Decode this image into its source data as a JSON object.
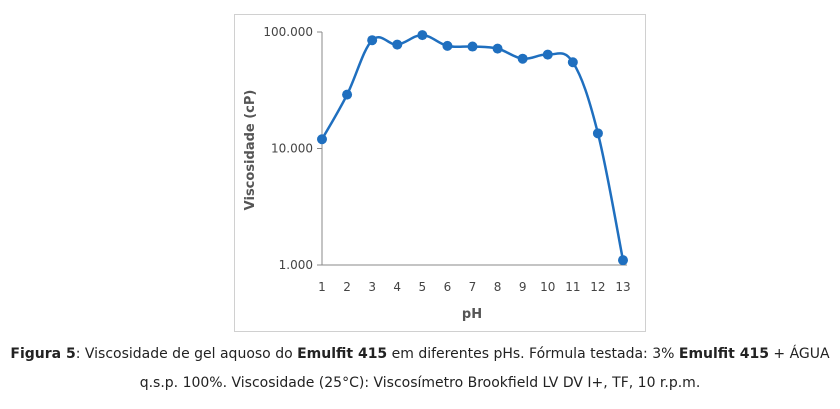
{
  "chart_data": {
    "type": "line",
    "xlabel": "pH",
    "ylabel": "Viscosidade (cP)",
    "yscale": "log",
    "ylim": [
      1000,
      100000
    ],
    "y_ticks": [
      "1.000",
      "10.000",
      "100.000"
    ],
    "x_ticks": [
      "1",
      "2",
      "3",
      "4",
      "5",
      "6",
      "7",
      "8",
      "9",
      "10",
      "11",
      "12",
      "13"
    ],
    "xlim": [
      1,
      13
    ],
    "grid": false,
    "series": [
      {
        "color": "#1f6fbf",
        "x": [
          1,
          2,
          3,
          4,
          5,
          6,
          7,
          8,
          9,
          10,
          11,
          12,
          13
        ],
        "values": [
          12000,
          29000,
          85000,
          78000,
          94000,
          76000,
          75000,
          72000,
          59000,
          64000,
          55000,
          13500,
          1100
        ]
      }
    ]
  },
  "caption": {
    "line1": [
      {
        "text": "Figura 5",
        "bold": true
      },
      {
        "text": ": Viscosidade de gel aquoso do ",
        "bold": false
      },
      {
        "text": "Emulfit 415",
        "bold": true
      },
      {
        "text": " em diferentes pHs. Fórmula testada: 3% ",
        "bold": false
      },
      {
        "text": "Emulfit 415",
        "bold": true
      },
      {
        "text": " + ÁGUA",
        "bold": false
      }
    ],
    "line2": [
      {
        "text": "q.s.p. 100%. Viscosidade (25°C): Viscosímetro Brookfield LV DV I+, TF, 10 r.p.m.",
        "bold": false
      }
    ]
  }
}
